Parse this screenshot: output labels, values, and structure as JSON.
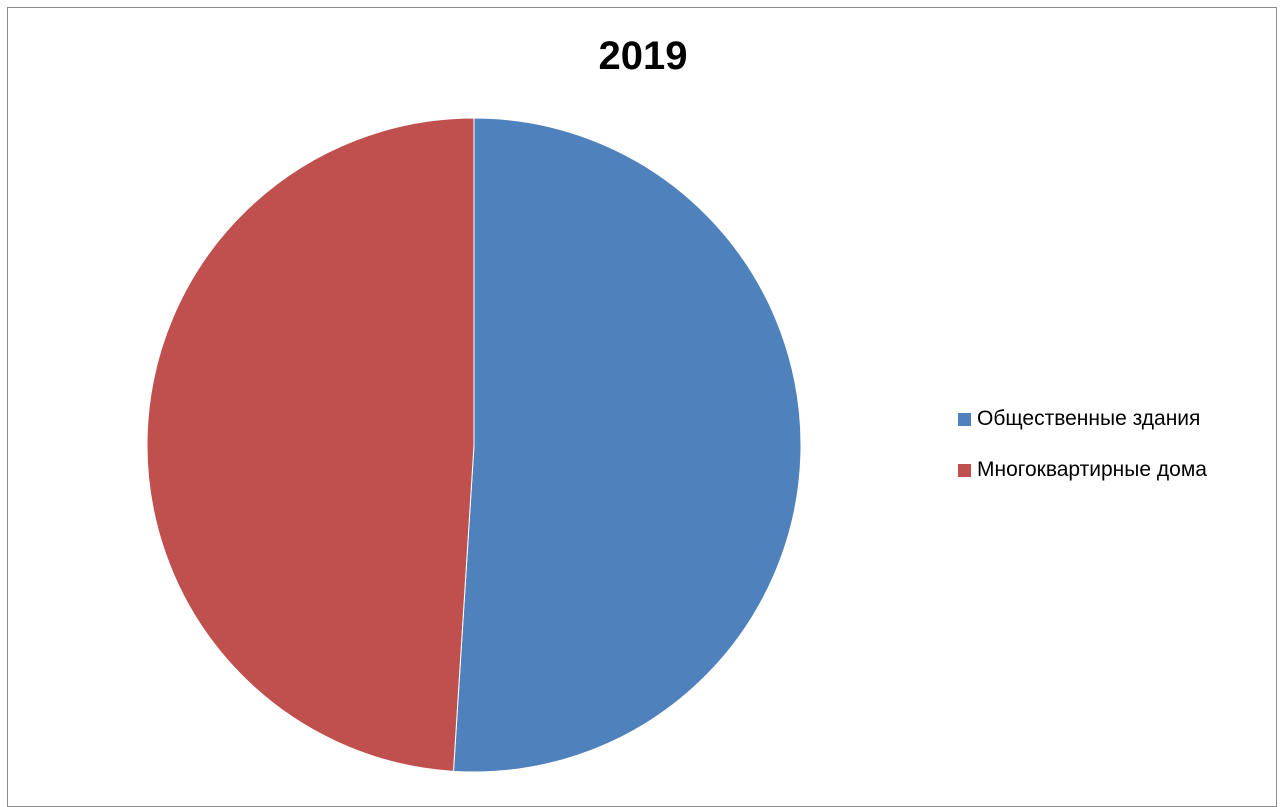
{
  "chart_data": {
    "type": "pie",
    "title": "2019",
    "legend_position": "right",
    "slices": [
      {
        "label": "Общественные здания",
        "value": 51,
        "color": "#4F81BD"
      },
      {
        "label": "Многоквартирные дома",
        "value": 49,
        "color": "#C0504D"
      }
    ]
  }
}
